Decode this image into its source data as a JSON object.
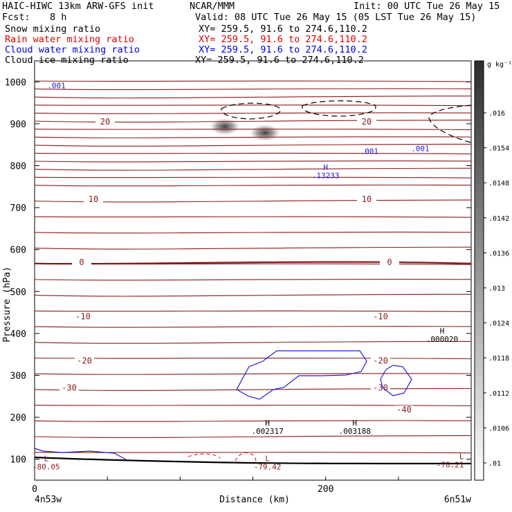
{
  "header": {
    "model": "HAIC-HIWC 13km ARW-GFS init",
    "org": "NCAR/MMM",
    "init": "Init: 00 UTC Tue 26 May 15",
    "fcst_label": "Fcst:",
    "fcst_value": "8 h",
    "valid": "Valid: 08 UTC Tue 26 May 15 (05 LST Tue 26 May 15)"
  },
  "fields": [
    {
      "name": "Snow mixing ratio",
      "xy": "XY= 259.5, 91.6 to 274.6,110.2",
      "color": "#000000"
    },
    {
      "name": "Rain water mixing ratio",
      "xy": "XY= 259.5, 91.6 to 274.6,110.2",
      "color": "#e00000"
    },
    {
      "name": "Cloud water mixing ratio",
      "xy": "XY= 259.5, 91.6 to 274.6,110.2",
      "color": "#0000dd"
    },
    {
      "name": "Cloud ice mixing ratio",
      "xy": "XY= 259.5, 91.6 to 274.6,110.2",
      "color": "#000000"
    }
  ],
  "chart_data": {
    "type": "cross-section contour",
    "xlabel": "Distance (km)",
    "ylabel": "Pressure (hPa)",
    "xlim": [
      0,
      300
    ],
    "ylim": [
      1050,
      50
    ],
    "x_ticks": [
      0,
      200
    ],
    "y_ticks": [
      100,
      200,
      300,
      400,
      500,
      600,
      700,
      800,
      900,
      1000
    ],
    "endpoint_labels": {
      "left": "4n53w",
      "right": "6n51w"
    },
    "temperature_contours": [
      {
        "label": "-30",
        "pressure": 270
      },
      {
        "label": "-20",
        "pressure": 335
      },
      {
        "label": "-10",
        "pressure": 440
      },
      {
        "label": "0",
        "pressure": 570
      },
      {
        "label": "10",
        "pressure": 720
      },
      {
        "label": "20",
        "pressure": 905
      }
    ],
    "temperature_label_extra": {
      "label": "-40",
      "pressure": 218
    },
    "extrema_labels": [
      {
        "kind": "L",
        "value": "-80.05",
        "x": 8,
        "p": 95
      },
      {
        "kind": "L",
        "value": "-79.42",
        "x": 160,
        "p": 95
      },
      {
        "kind": "L",
        "value": "-78.21",
        "x": 295,
        "p": 100
      },
      {
        "kind": "H",
        "value": ".002317",
        "x": 160,
        "p": 180
      },
      {
        "kind": "H",
        "value": ".003188",
        "x": 220,
        "p": 180
      },
      {
        "kind": "H",
        "value": ".000020",
        "x": 280,
        "p": 400
      },
      {
        "kind": "H",
        "value": ".13233",
        "x": 200,
        "p": 790
      }
    ],
    "cloud_water_contour_labels": [
      {
        "label": ".001",
        "x": 230,
        "p": 828
      },
      {
        "label": ".001",
        "x": 265,
        "p": 835
      },
      {
        "label": ".001",
        "x": 15,
        "p": 985
      }
    ],
    "colorbar": {
      "units": "g kg⁻¹",
      "ticks": [
        ".016",
        ".0154",
        ".0148",
        ".0142",
        ".0136",
        ".013",
        ".0124",
        ".0118",
        ".0112",
        ".0106",
        ".01"
      ]
    }
  }
}
